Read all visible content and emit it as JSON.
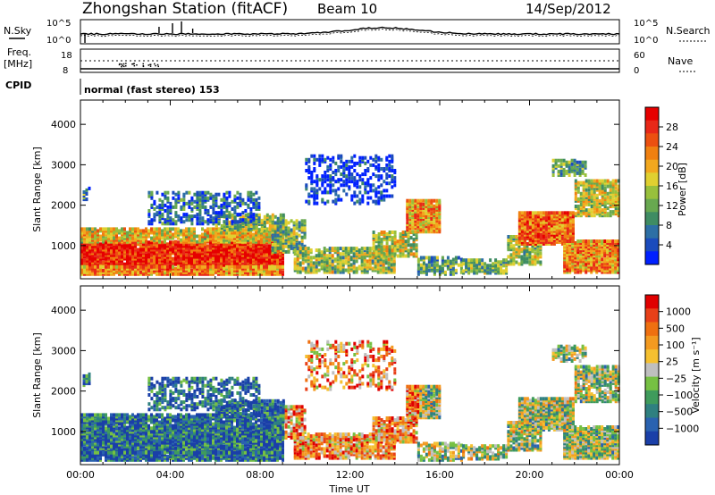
{
  "header": {
    "station": "Zhongshan Station (fitACF)",
    "beam": "Beam 10",
    "date": "14/Sep/2012"
  },
  "summary_panels": {
    "nsky_label": "N.Sky",
    "nsearch_label": "N.Search",
    "freq_label": "Freq.",
    "freq_unit": "[MHz]",
    "nave_label": "Nave",
    "cpid_label": "CPID",
    "cpid_text": "normal (fast stereo) 153",
    "noise_ticks_left": [
      "10^5",
      "10^0"
    ],
    "noise_ticks_right": [
      "10^5",
      "10^0"
    ],
    "freq_ticks": [
      "18",
      "8"
    ],
    "nave_ticks": [
      "60",
      "0"
    ]
  },
  "chart_data": [
    {
      "type": "heatmap",
      "name": "power-panel",
      "ylabel": "Slant Range [km]",
      "xlabel": "",
      "yticks": [
        "1000",
        "2000",
        "3000",
        "4000"
      ],
      "ylim": [
        180,
        4600
      ],
      "xlim": [
        0,
        24
      ],
      "colorbar": {
        "label": "Power [dB]",
        "ticks": [
          "4",
          "8",
          "12",
          "16",
          "20",
          "24",
          "28"
        ],
        "colors": [
          "#0020ff",
          "#1b4bbd",
          "#2d6fa5",
          "#3f8c63",
          "#68a850",
          "#98c03c",
          "#e0d030",
          "#f2a81e",
          "#f08010",
          "#ec5010",
          "#e82818",
          "#e60000"
        ]
      }
    },
    {
      "type": "heatmap",
      "name": "velocity-panel",
      "ylabel": "Slant Range [km]",
      "xlabel": "Time UT",
      "yticks": [
        "1000",
        "2000",
        "3000",
        "4000"
      ],
      "xticks": [
        "00:00",
        "04:00",
        "08:00",
        "12:00",
        "16:00",
        "20:00",
        "00:00"
      ],
      "ylim": [
        180,
        4600
      ],
      "xlim": [
        0,
        24
      ],
      "colorbar": {
        "label": "Velocity [m s⁻¹]",
        "ticks": [
          "1000",
          "500",
          "100",
          "25",
          "−25",
          "−100",
          "−500",
          "−1000"
        ],
        "colors": [
          "#1a3fa8",
          "#2a62b0",
          "#2f8080",
          "#3f9b5c",
          "#76c043",
          "#bfbfbf",
          "#f5c030",
          "#f39a20",
          "#ef7010",
          "#e84018",
          "#e00000"
        ]
      }
    }
  ]
}
